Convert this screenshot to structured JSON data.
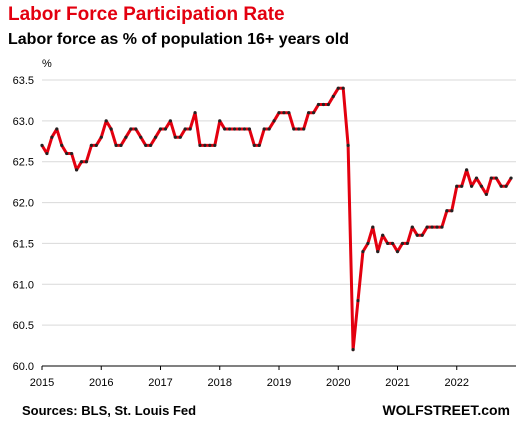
{
  "header": {
    "title": "Labor Force Participation  Rate",
    "subtitle": "Labor force as % of population 16+ years old"
  },
  "footer": {
    "source": "Sources: BLS, St. Louis Fed",
    "brand": "WOLFSTREET.com"
  },
  "colors": {
    "line": "#e3000f",
    "marker": "#222222",
    "grid": "#d9d9d9",
    "title": "#e3000f"
  },
  "chart_data": {
    "type": "line",
    "title": "Labor Force Participation  Rate",
    "subtitle": "Labor force as % of population 16+ years old",
    "ylabel": "%",
    "xlabel": "",
    "ylim": [
      60.0,
      63.5
    ],
    "y_ticks": [
      "60.0",
      "60.5",
      "61.0",
      "61.5",
      "62.0",
      "62.5",
      "63.0",
      "63.5"
    ],
    "x_ticks": [
      "2015",
      "2016",
      "2017",
      "2018",
      "2019",
      "2020",
      "2021",
      "2022"
    ],
    "grid": "horizontal",
    "legend": "none",
    "x_start": "2015-01",
    "frequency": "monthly",
    "series": [
      {
        "values": [
          62.7,
          62.6,
          62.8,
          62.9,
          62.7,
          62.6,
          62.6,
          62.4,
          62.5,
          62.5,
          62.7,
          62.7,
          62.8,
          63.0,
          62.9,
          62.7,
          62.7,
          62.8,
          62.9,
          62.9,
          62.8,
          62.7,
          62.7,
          62.8,
          62.9,
          62.9,
          63.0,
          62.8,
          62.8,
          62.9,
          62.9,
          63.1,
          62.7,
          62.7,
          62.7,
          62.7,
          63.0,
          62.9,
          62.9,
          62.9,
          62.9,
          62.9,
          62.9,
          62.7,
          62.7,
          62.9,
          62.9,
          63.0,
          63.1,
          63.1,
          63.1,
          62.9,
          62.9,
          62.9,
          63.1,
          63.1,
          63.2,
          63.2,
          63.2,
          63.3,
          63.4,
          63.4,
          62.7,
          60.2,
          60.8,
          61.4,
          61.5,
          61.7,
          61.4,
          61.6,
          61.5,
          61.5,
          61.4,
          61.5,
          61.5,
          61.7,
          61.6,
          61.6,
          61.7,
          61.7,
          61.7,
          61.7,
          61.9,
          61.9,
          62.2,
          62.2,
          62.4,
          62.2,
          62.3,
          62.2,
          62.1,
          62.3,
          62.3,
          62.2,
          62.2,
          62.3
        ]
      }
    ]
  }
}
